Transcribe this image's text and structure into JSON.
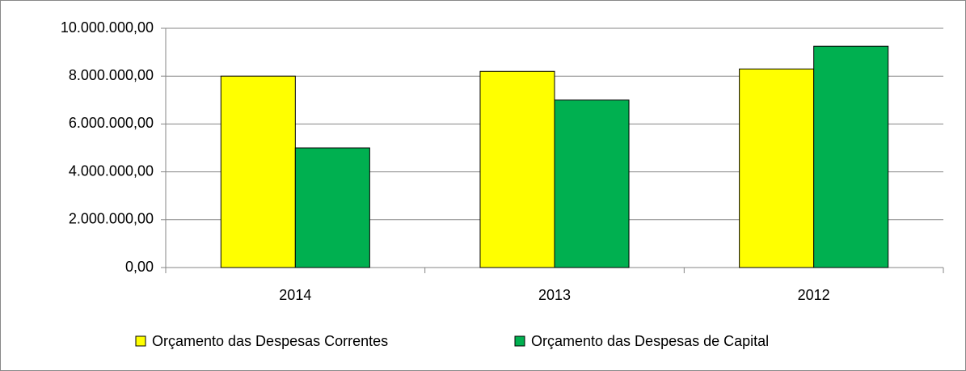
{
  "chart_data": {
    "type": "bar",
    "categories": [
      "2014",
      "2013",
      "2012"
    ],
    "series": [
      {
        "name": "Orçamento das Despesas Correntes",
        "color": "#ffff00",
        "values": [
          8000000,
          8200000,
          8300000
        ]
      },
      {
        "name": "Orçamento das Despesas de Capital",
        "color": "#00b050",
        "values": [
          5000000,
          7000000,
          9250000
        ]
      }
    ],
    "ylim": [
      0,
      10000000
    ],
    "yticks": [
      {
        "value": 0,
        "label": "0,00"
      },
      {
        "value": 2000000,
        "label": "2.000.000,00"
      },
      {
        "value": 4000000,
        "label": "4.000.000,00"
      },
      {
        "value": 6000000,
        "label": "6.000.000,00"
      },
      {
        "value": 8000000,
        "label": "8.000.000,00"
      },
      {
        "value": 10000000,
        "label": "10.000.000,00"
      }
    ],
    "grid": true,
    "legend": "bottom"
  }
}
